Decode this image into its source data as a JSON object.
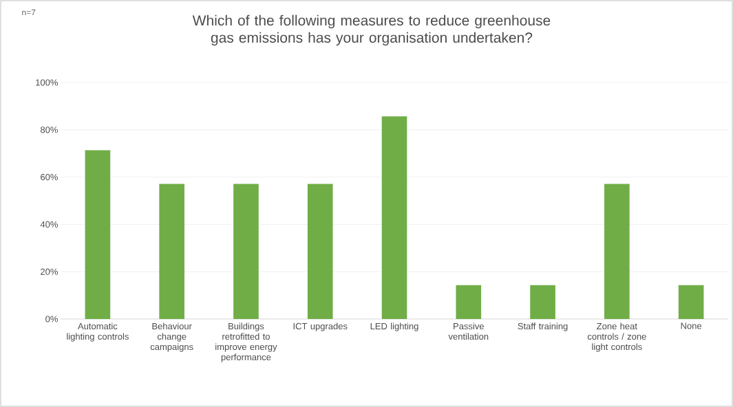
{
  "chart_data": {
    "type": "bar",
    "title": "Which of the following measures to reduce greenhouse gas emissions has your organisation undertaken?",
    "annotations": [
      "n=7"
    ],
    "categories": [
      "Automatic lighting controls",
      "Behaviour change campaigns",
      "Buildings retrofitted to improve energy performance",
      "ICT upgrades",
      "LED lighting",
      "Passive ventilation",
      "Staff training",
      "Zone heat controls / zone light controls",
      "None"
    ],
    "values": [
      71.4,
      57.1,
      57.1,
      57.1,
      85.7,
      14.3,
      14.3,
      57.1,
      14.3
    ],
    "color": "#70ad47",
    "ylim": [
      0,
      100
    ],
    "yticks": [
      {
        "value": 0,
        "label": "0%"
      },
      {
        "value": 20,
        "label": "20%"
      },
      {
        "value": 40,
        "label": "40%"
      },
      {
        "value": 60,
        "label": "60%"
      },
      {
        "value": 80,
        "label": "80%"
      },
      {
        "value": 100,
        "label": "100%"
      }
    ],
    "grid": "y"
  }
}
